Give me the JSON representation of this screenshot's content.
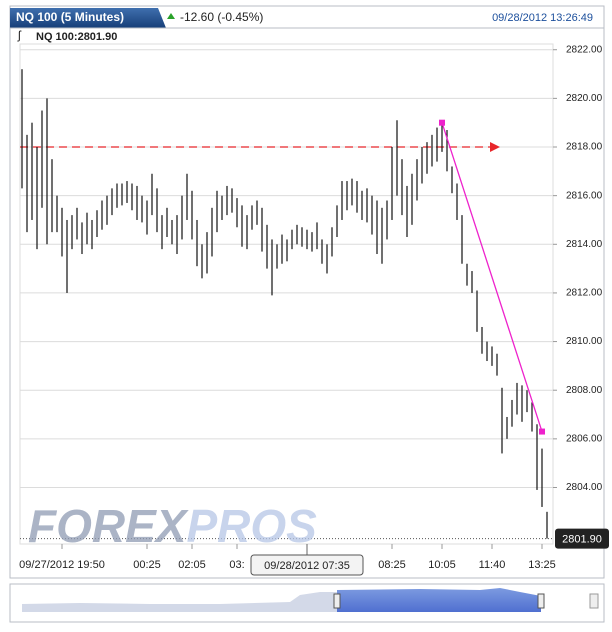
{
  "header": {
    "tab": "NQ 100 (5 Minutes)",
    "change": "-12.60 (-0.45%)",
    "timestamp": "09/28/2012 13:26:49"
  },
  "chart_data": {
    "type": "ohlc",
    "subtitle": "NQ 100:2801.90",
    "last_price": {
      "value": 2801.9,
      "label": "2801.90"
    },
    "color": "#111111",
    "grid": true,
    "high": [
      2821.2,
      2818.5,
      2819,
      2818,
      2819.5,
      2820,
      2817.5,
      2816,
      2815.5,
      2815,
      2815.2,
      2815.5,
      2814.9,
      2815.3,
      2815,
      2815.4,
      2815.8,
      2816,
      2816.3,
      2816.5,
      2816.5,
      2816.6,
      2816.5,
      2816.4,
      2816,
      2815.8,
      2816.9,
      2816.3,
      2815.2,
      2815.5,
      2815,
      2815.2,
      2816,
      2816.9,
      2816.2,
      2815,
      2814,
      2814.5,
      2815.5,
      2816.2,
      2816,
      2816.4,
      2816.3,
      2815.9,
      2815.6,
      2815.2,
      2815.6,
      2815.8,
      2815.5,
      2814.8,
      2814.2,
      2814,
      2814.4,
      2814.2,
      2814.6,
      2814.8,
      2814.7,
      2814.6,
      2814.5,
      2814.9,
      2814.2,
      2814,
      2814.7,
      2815.6,
      2816.6,
      2816.6,
      2816.7,
      2816.6,
      2816.2,
      2816.3,
      2816,
      2815.8,
      2815.5,
      2815.8,
      2818,
      2819.1,
      2817.5,
      2816.4,
      2816.9,
      2817.5,
      2818,
      2818.2,
      2818.5,
      2818.8,
      2819.1,
      2818.7,
      2817.2,
      2816.5,
      2815.2,
      2813.2,
      2812.9,
      2812.1,
      2810.6,
      2810,
      2809.8,
      2809.5,
      2808.1,
      2806.9,
      2807.6,
      2808.3,
      2808.2,
      2808,
      2807.5,
      2806.6,
      2805.6,
      2803
    ],
    "low": [
      2816.3,
      2814.5,
      2815,
      2813.8,
      2815.5,
      2814,
      2814.5,
      2814.5,
      2813.5,
      2812,
      2813.8,
      2814.2,
      2813.6,
      2814,
      2813.8,
      2814.3,
      2814.6,
      2814.8,
      2815.2,
      2815.5,
      2815.6,
      2815.7,
      2815.4,
      2815,
      2814.9,
      2814.4,
      2815.2,
      2814.5,
      2813.8,
      2814.3,
      2814,
      2813.6,
      2814.2,
      2815,
      2814.2,
      2813.1,
      2812.6,
      2812.8,
      2813.5,
      2814.5,
      2815,
      2815.2,
      2815.3,
      2814.7,
      2813.9,
      2813.8,
      2814.6,
      2814.8,
      2813.7,
      2813,
      2811.9,
      2813,
      2813.2,
      2813.3,
      2813.8,
      2814,
      2813.9,
      2813.8,
      2813.7,
      2813.8,
      2813.2,
      2812.8,
      2813.5,
      2814.3,
      2815,
      2815.4,
      2815.6,
      2815.3,
      2815,
      2814.9,
      2814.4,
      2813.6,
      2813.2,
      2814.2,
      2815,
      2816,
      2815.2,
      2814.3,
      2814.8,
      2815.8,
      2816.5,
      2816.9,
      2817.2,
      2817.4,
      2817.8,
      2817,
      2816.1,
      2815,
      2813.2,
      2812.3,
      2812,
      2810.4,
      2809.5,
      2809.2,
      2809,
      2808.6,
      2805.4,
      2806,
      2806.5,
      2807,
      2806.7,
      2807.1,
      2806.3,
      2803.9,
      2803.2,
      2801.9
    ],
    "ylim": [
      2801.8,
      2822.4
    ],
    "yticks": [
      {
        "value": 2804,
        "label": "2804.00"
      },
      {
        "value": 2806,
        "label": "2806.00"
      },
      {
        "value": 2808,
        "label": "2808.00"
      },
      {
        "value": 2810,
        "label": "2810.00"
      },
      {
        "value": 2812,
        "label": "2812.00"
      },
      {
        "value": 2814,
        "label": "2814.00"
      },
      {
        "value": 2816,
        "label": "2816.00"
      },
      {
        "value": 2818,
        "label": "2818.00"
      },
      {
        "value": 2820,
        "label": "2820.00"
      },
      {
        "value": 2822,
        "label": "2822.00"
      }
    ],
    "xticks": [
      {
        "value": 8,
        "label": "09/27/2012 19:50"
      },
      {
        "value": 25,
        "label": "00:25"
      },
      {
        "value": 34,
        "label": "02:05"
      },
      {
        "value": 43,
        "label": "03:"
      },
      {
        "value": 74,
        "label": "08:25"
      },
      {
        "value": 84,
        "label": "10:05"
      },
      {
        "value": 94,
        "label": "11:40"
      },
      {
        "value": 104,
        "label": "13:25"
      }
    ],
    "cursor": {
      "value": 57,
      "label": "09/28/2012 07:35"
    },
    "hline": {
      "value": 2818,
      "color": "#e8262a"
    },
    "trendline": {
      "x": [
        84,
        104
      ],
      "y": [
        2819,
        2806.3
      ],
      "color": "#ee22cc"
    },
    "watermark": [
      "FOREX",
      "PROS"
    ]
  }
}
